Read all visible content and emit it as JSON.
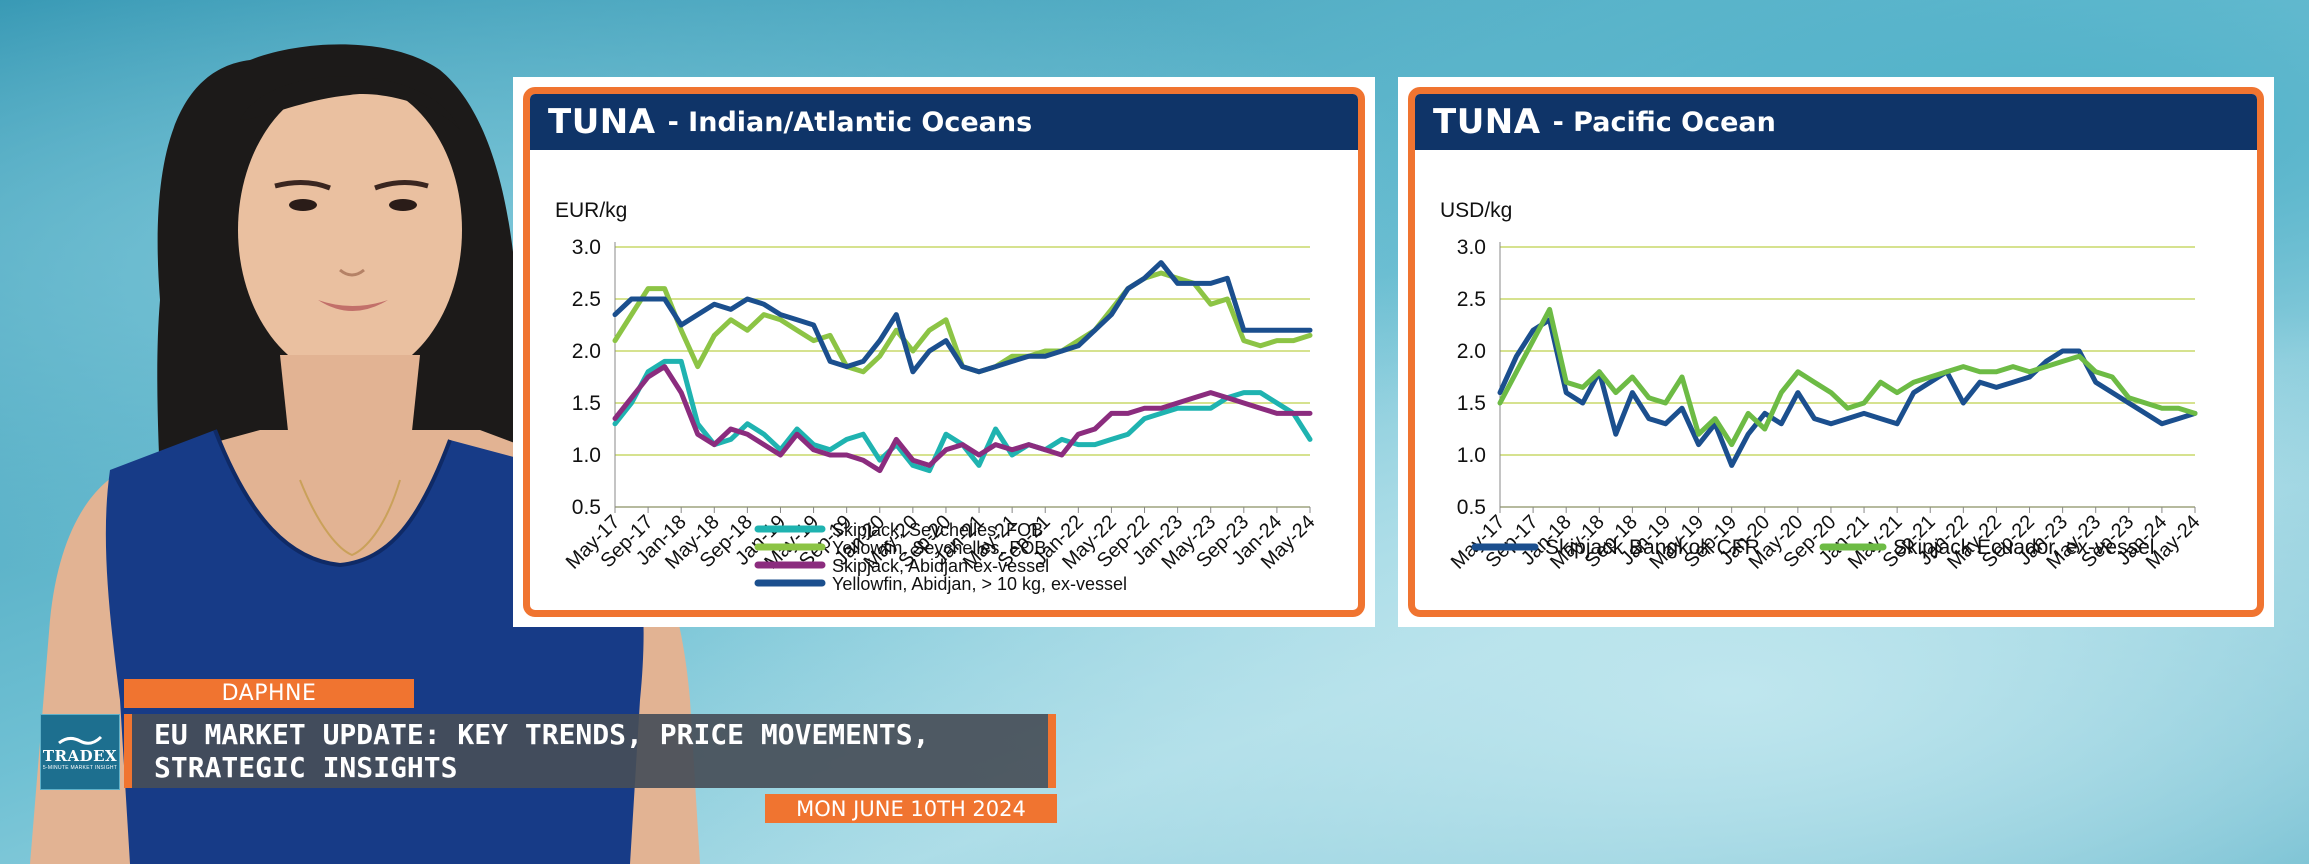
{
  "panels": [
    {
      "title_bold": "TUNA",
      "title_rest": "- Indian/Atlantic Oceans"
    },
    {
      "title_bold": "TUNA",
      "title_rest": "- Pacific Ocean"
    }
  ],
  "chart_data": [
    {
      "type": "line",
      "unit_label": "EUR/kg",
      "ylim": [
        0.5,
        3.0
      ],
      "yticks": [
        "3.0",
        "2.5",
        "2.0",
        "1.5",
        "1.0",
        "0.5"
      ],
      "xlim": [
        0,
        28
      ],
      "tick_labels": [
        "May-17",
        "Sep-17",
        "Jan-18",
        "May-18",
        "Sep-18",
        "Jan-19",
        "May-19",
        "Sep-19",
        "Jan-20",
        "May-20",
        "Sep-20",
        "Jan-21",
        "May-21",
        "Sep-21",
        "Jan-22",
        "May-22",
        "Sep-22",
        "Jan-23",
        "May-23",
        "Sep-23",
        "Jan-24",
        "May-24"
      ],
      "tick_positions": [
        0,
        4,
        8,
        12,
        16,
        20,
        24,
        28,
        32,
        36,
        40,
        44,
        48,
        52,
        56,
        60,
        64,
        68,
        72,
        76,
        80,
        84
      ],
      "x_points": [
        0,
        2,
        4,
        6,
        8,
        10,
        12,
        14,
        16,
        18,
        20,
        22,
        24,
        26,
        28,
        30,
        32,
        34,
        36,
        38,
        40,
        42,
        44,
        46,
        48,
        50,
        52,
        54,
        56,
        58,
        60,
        62,
        64,
        66,
        68,
        70,
        72,
        74,
        76,
        78,
        80,
        82,
        84
      ],
      "grid": true,
      "legend_position": "bottom",
      "series": [
        {
          "name": "Skipjack, Seychelles, FOB",
          "color": "#1fb3b0",
          "values": [
            1.3,
            1.5,
            1.8,
            1.9,
            1.9,
            1.3,
            1.1,
            1.15,
            1.3,
            1.2,
            1.05,
            1.25,
            1.1,
            1.05,
            1.15,
            1.2,
            0.95,
            1.1,
            0.9,
            0.85,
            1.2,
            1.1,
            0.9,
            1.25,
            1.0,
            1.1,
            1.05,
            1.15,
            1.1,
            1.1,
            1.15,
            1.2,
            1.35,
            1.4,
            1.45,
            1.45,
            1.45,
            1.55,
            1.6,
            1.6,
            1.5,
            1.4,
            1.15
          ]
        },
        {
          "name": "Yellowfin, Seychelles, FOB",
          "color": "#8cc445",
          "values": [
            2.1,
            2.35,
            2.6,
            2.6,
            2.2,
            1.85,
            2.15,
            2.3,
            2.2,
            2.35,
            2.3,
            2.2,
            2.1,
            2.15,
            1.85,
            1.8,
            1.95,
            2.2,
            2.0,
            2.2,
            2.3,
            1.85,
            1.8,
            1.85,
            1.95,
            1.95,
            2.0,
            2.0,
            2.1,
            2.2,
            2.4,
            2.6,
            2.7,
            2.75,
            2.7,
            2.65,
            2.45,
            2.5,
            2.1,
            2.05,
            2.1,
            2.1,
            2.15
          ]
        },
        {
          "name": "Skipjack, Abidjan ex-vessel",
          "color": "#8b2c7e",
          "values": [
            1.35,
            1.55,
            1.75,
            1.85,
            1.6,
            1.2,
            1.1,
            1.25,
            1.2,
            1.1,
            1.0,
            1.2,
            1.05,
            1.0,
            1.0,
            0.95,
            0.85,
            1.15,
            0.95,
            0.9,
            1.05,
            1.1,
            1.0,
            1.1,
            1.05,
            1.1,
            1.05,
            1.0,
            1.2,
            1.25,
            1.4,
            1.4,
            1.45,
            1.45,
            1.5,
            1.55,
            1.6,
            1.55,
            1.5,
            1.45,
            1.4,
            1.4,
            1.4
          ]
        },
        {
          "name": "Yellowfin, Abidjan, > 10 kg, ex-vessel",
          "color": "#1b4f8e",
          "values": [
            2.35,
            2.5,
            2.5,
            2.5,
            2.25,
            2.35,
            2.45,
            2.4,
            2.5,
            2.45,
            2.35,
            2.3,
            2.25,
            1.9,
            1.85,
            1.9,
            2.1,
            2.35,
            1.8,
            2.0,
            2.1,
            1.85,
            1.8,
            1.85,
            1.9,
            1.95,
            1.95,
            2.0,
            2.05,
            2.2,
            2.35,
            2.6,
            2.7,
            2.85,
            2.65,
            2.65,
            2.65,
            2.7,
            2.2,
            2.2,
            2.2,
            2.2,
            2.2
          ]
        }
      ]
    },
    {
      "type": "line",
      "unit_label": "USD/kg",
      "ylim": [
        0.5,
        3.0
      ],
      "yticks": [
        "3.0",
        "2.5",
        "2.0",
        "1.5",
        "1.0",
        "0.5"
      ],
      "tick_labels": [
        "May-17",
        "Sep-17",
        "Jan-18",
        "May-18",
        "Sep-18",
        "Jan-19",
        "May-19",
        "Sep-19",
        "Jan-20",
        "May-20",
        "Sep-20",
        "Jan-21",
        "May-21",
        "Sep-21",
        "Jan-22",
        "May-22",
        "Sep-22",
        "Jan-23",
        "May-23",
        "Sep-23",
        "Jan-24",
        "May-24"
      ],
      "tick_positions": [
        0,
        4,
        8,
        12,
        16,
        20,
        24,
        28,
        32,
        36,
        40,
        44,
        48,
        52,
        56,
        60,
        64,
        68,
        72,
        76,
        80,
        84
      ],
      "x_points": [
        0,
        2,
        4,
        6,
        8,
        10,
        12,
        14,
        16,
        18,
        20,
        22,
        24,
        26,
        28,
        30,
        32,
        34,
        36,
        38,
        40,
        42,
        44,
        46,
        48,
        50,
        52,
        54,
        56,
        58,
        60,
        62,
        64,
        66,
        68,
        70,
        72,
        74,
        76,
        78,
        80,
        82,
        84
      ],
      "grid": true,
      "legend_position": "bottom",
      "series": [
        {
          "name": "Skipjack Bangkok CFR",
          "color": "#1b4f8e",
          "values": [
            1.6,
            1.95,
            2.2,
            2.3,
            1.6,
            1.5,
            1.8,
            1.2,
            1.6,
            1.35,
            1.3,
            1.45,
            1.1,
            1.3,
            0.9,
            1.2,
            1.4,
            1.3,
            1.6,
            1.35,
            1.3,
            1.35,
            1.4,
            1.35,
            1.3,
            1.6,
            1.7,
            1.8,
            1.5,
            1.7,
            1.65,
            1.7,
            1.75,
            1.9,
            2.0,
            2.0,
            1.7,
            1.6,
            1.5,
            1.4,
            1.3,
            1.35,
            1.4
          ]
        },
        {
          "name": "Skipjack Ecuador, ex-vessel",
          "color": "#6dbb45",
          "values": [
            1.5,
            1.8,
            2.1,
            2.4,
            1.7,
            1.65,
            1.8,
            1.6,
            1.75,
            1.55,
            1.5,
            1.75,
            1.2,
            1.35,
            1.1,
            1.4,
            1.25,
            1.6,
            1.8,
            1.7,
            1.6,
            1.45,
            1.5,
            1.7,
            1.6,
            1.7,
            1.75,
            1.8,
            1.85,
            1.8,
            1.8,
            1.85,
            1.8,
            1.85,
            1.9,
            1.95,
            1.8,
            1.75,
            1.55,
            1.5,
            1.45,
            1.45,
            1.4
          ]
        }
      ]
    }
  ],
  "lower_third": {
    "presenter_name": "DAPHNE",
    "headline": "EU MARKET UPDATE: KEY TRENDS, PRICE MOVEMENTS, STRATEGIC INSIGHTS",
    "date": "MON JUNE 10TH 2024",
    "logo_name": "TRADEX",
    "logo_tagline": "5-MINUTE MARKET INSIGHT"
  },
  "colors": {
    "accent_orange": "#f07430",
    "header_navy": "#0f3468",
    "grid_line": "#c8d96a"
  }
}
